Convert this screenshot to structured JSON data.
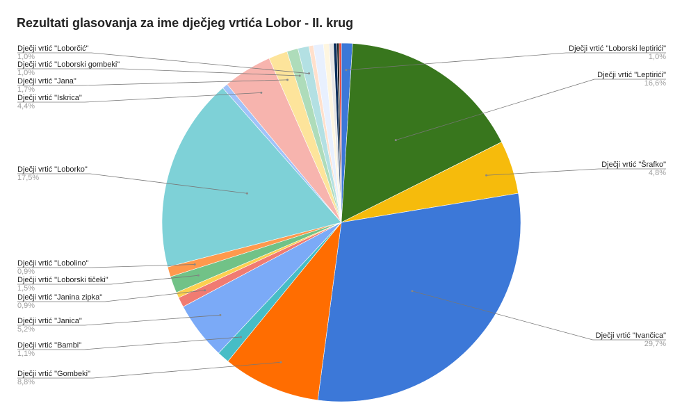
{
  "chart_data": {
    "type": "pie",
    "title": "Rezultati glasovanja za ime dječjeg vrtića Lobor - II. krug",
    "categories": [
      "Dječji vrtić \"Loborski leptirići\"",
      "Dječji vrtić \"Leptirići\"",
      "Dječji vrtić \"Šrafko\"",
      "Dječji vrtić \"Ivančica\"",
      "Dječji vrtić \"Gombeki\"",
      "Dječji vrtić \"Bambi\"",
      "Dječji vrtić \"Janica\"",
      "Dječji vrtić \"Janina zipka\"",
      null,
      "Dječji vrtić \"Loborski tičeki\"",
      "Dječji vrtić \"Lobolino\"",
      "Dječji vrtić \"Loborko\"",
      null,
      "Dječji vrtić \"Iskrica\"",
      "Dječji vrtić \"Jana\"",
      "Dječji vrtić \"Loborski gombeki\"",
      "Dječji vrtić \"Loborčić\"",
      null,
      null,
      null,
      null,
      null,
      null,
      null
    ],
    "values": [
      1.0,
      16.6,
      4.8,
      29.7,
      8.8,
      1.1,
      5.2,
      0.9,
      0.5,
      1.5,
      0.9,
      17.5,
      0.5,
      4.4,
      1.7,
      1.0,
      1.0,
      0.4,
      0.9,
      0.5,
      0.4,
      0.3,
      0.2,
      0.2
    ],
    "value_labels": [
      "1,0%",
      "16,6%",
      "4,8%",
      "29,7%",
      "8,8%",
      "1,1%",
      "5,2%",
      "0,9%",
      null,
      "1,5%",
      "0,9%",
      "17,5%",
      null,
      "4,4%",
      "1,7%",
      "1,0%",
      "1,0%",
      null,
      null,
      null,
      null,
      null,
      null,
      null
    ],
    "colors": [
      "#3c78d8",
      "#38761d",
      "#f6bb0c",
      "#3c78d8",
      "#ff6d01",
      "#46bdc6",
      "#7baaf7",
      "#f07b72",
      "#fcd04f",
      "#71c287",
      "#ff994d",
      "#7ed1d7",
      "#a0c2f9",
      "#f7b4ae",
      "#fde49b",
      "#aedcba",
      "#b3e0e3",
      "#ffe0cc",
      "#e8f0fe",
      "#fef6e0",
      "#e6e6e6",
      "#0b2e59",
      "#222222",
      "#ea4335"
    ]
  }
}
